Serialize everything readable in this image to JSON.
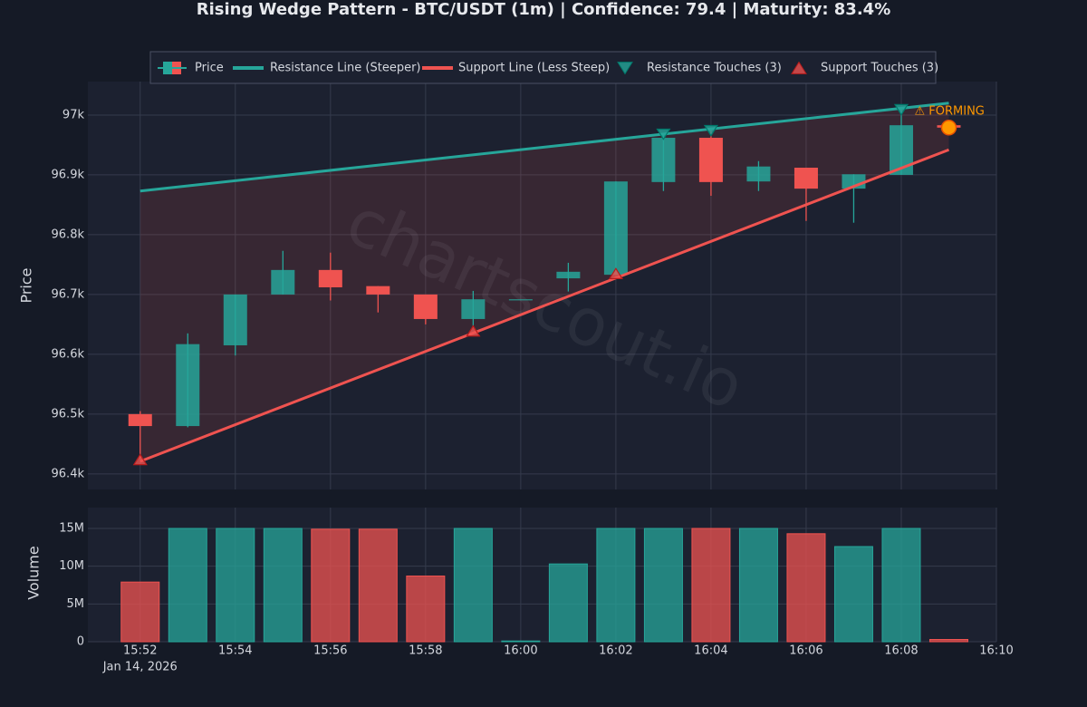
{
  "chart_data": [
    {
      "type": "candlestick",
      "title": "Rising Wedge Pattern - BTC/USDT (1m) | Confidence: 79.4 | Maturity: 83.4%",
      "watermark": "chartscout.io",
      "ylabel": "Price",
      "name": "Price",
      "up_color": "#26a69a",
      "down_color": "#ef5350",
      "x": [
        "2026-01-14 15:52",
        "2026-01-14 15:53",
        "2026-01-14 15:54",
        "2026-01-14 15:55",
        "2026-01-14 15:56",
        "2026-01-14 15:57",
        "2026-01-14 15:58",
        "2026-01-14 15:59",
        "2026-01-14 16:00",
        "2026-01-14 16:01",
        "2026-01-14 16:02",
        "2026-01-14 16:03",
        "2026-01-14 16:04",
        "2026-01-14 16:05",
        "2026-01-14 16:06",
        "2026-01-14 16:07",
        "2026-01-14 16:08",
        "2026-01-14 16:09"
      ],
      "open": [
        96500,
        96480,
        96615,
        96700,
        96741,
        96714,
        96700,
        96659,
        96692,
        96727,
        96733,
        96888,
        96962,
        96889,
        96912,
        96877,
        96900,
        96983
      ],
      "high": [
        96505,
        96635,
        96700,
        96773,
        96770,
        96714,
        96700,
        96706,
        96692,
        96753,
        96889,
        96970,
        96977,
        96923,
        96912,
        96901,
        97010,
        96983
      ],
      "low": [
        96425,
        96478,
        96598,
        96700,
        96690,
        96670,
        96650,
        96645,
        96692,
        96705,
        96733,
        96873,
        96865,
        96873,
        96823,
        96820,
        96900,
        96979
      ],
      "close": [
        96480,
        96617,
        96700,
        96741,
        96712,
        96700,
        96659,
        96692,
        96692,
        96738,
        96889,
        96962,
        96888,
        96914,
        96877,
        96901,
        96983,
        96979
      ],
      "lines": [
        {
          "name": "Resistance Line (Steeper)",
          "color": "#26a69a",
          "x": [
            "2026-01-14 15:52",
            "2026-01-14 16:09"
          ],
          "values": [
            96873,
            97020
          ]
        },
        {
          "name": "Support Line (Less Steep)",
          "color": "#ef5350",
          "x": [
            "2026-01-14 15:52",
            "2026-01-14 16:09"
          ],
          "values": [
            96421,
            96942
          ]
        }
      ],
      "wedge_fill": "rgba(239,83,80,0.13)",
      "markers": [
        {
          "name": "Resistance Touches (3)",
          "color": "#26a69a",
          "shape": "triangle-down",
          "x": [
            "2026-01-14 16:03",
            "2026-01-14 16:04",
            "2026-01-14 16:08"
          ],
          "values": [
            96968,
            96974,
            97009
          ]
        },
        {
          "name": "Support Touches (3)",
          "color": "#ef5350",
          "shape": "triangle-up",
          "x": [
            "2026-01-14 15:52",
            "2026-01-14 15:59",
            "2026-01-14 16:02"
          ],
          "values": [
            96424,
            96639,
            96735
          ]
        }
      ],
      "current": {
        "x": "2026-01-14 16:09",
        "value": 96979,
        "color": "#ff9800",
        "label": "⚠ FORMING"
      },
      "xlim": [
        "2026-01-14 15:50:54",
        "2026-01-14 16:10"
      ],
      "ylim": [
        96374,
        97056
      ],
      "yticks": [
        {
          "value": 96400,
          "label": "96.4k"
        },
        {
          "value": 96500,
          "label": "96.5k"
        },
        {
          "value": 96600,
          "label": "96.6k"
        },
        {
          "value": 96700,
          "label": "96.7k"
        },
        {
          "value": 96800,
          "label": "96.8k"
        },
        {
          "value": 96900,
          "label": "96.9k"
        },
        {
          "value": 97000,
          "label": "97k"
        }
      ],
      "grid": true
    },
    {
      "type": "bar",
      "ylabel": "Volume",
      "x": [
        "2026-01-14 15:52",
        "2026-01-14 15:53",
        "2026-01-14 15:54",
        "2026-01-14 15:55",
        "2026-01-14 15:56",
        "2026-01-14 15:57",
        "2026-01-14 15:58",
        "2026-01-14 15:59",
        "2026-01-14 16:00",
        "2026-01-14 16:01",
        "2026-01-14 16:02",
        "2026-01-14 16:03",
        "2026-01-14 16:04",
        "2026-01-14 16:05",
        "2026-01-14 16:06",
        "2026-01-14 16:07",
        "2026-01-14 16:08",
        "2026-01-14 16:09"
      ],
      "values": [
        7900000,
        15000000,
        15000000,
        15000000,
        14900000,
        14900000,
        8700000,
        15000000,
        100000,
        10300000,
        15000000,
        15000000,
        15000000,
        15000000,
        14300000,
        12600000,
        15000000,
        300000
      ],
      "xlim": [
        "2026-01-14 15:50:54",
        "2026-01-14 16:10"
      ],
      "xticks": [
        {
          "value": "2026-01-14 15:52",
          "label": "15:52"
        },
        {
          "value": "2026-01-14 15:54",
          "label": "15:54"
        },
        {
          "value": "2026-01-14 15:56",
          "label": "15:56"
        },
        {
          "value": "2026-01-14 15:58",
          "label": "15:58"
        },
        {
          "value": "2026-01-14 16:00",
          "label": "16:00"
        },
        {
          "value": "2026-01-14 16:02",
          "label": "16:02"
        },
        {
          "value": "2026-01-14 16:04",
          "label": "16:04"
        },
        {
          "value": "2026-01-14 16:06",
          "label": "16:06"
        },
        {
          "value": "2026-01-14 16:08",
          "label": "16:08"
        },
        {
          "value": "2026-01-14 16:10",
          "label": "16:10"
        }
      ],
      "xdate_label": "Jan 14, 2026",
      "ylim": [
        0,
        17760000
      ],
      "yticks": [
        0,
        {
          "value": 5000000,
          "label": "5M"
        },
        {
          "value": 10000000,
          "label": "10M"
        },
        {
          "value": 15000000,
          "label": "15M"
        }
      ],
      "grid": true
    }
  ]
}
